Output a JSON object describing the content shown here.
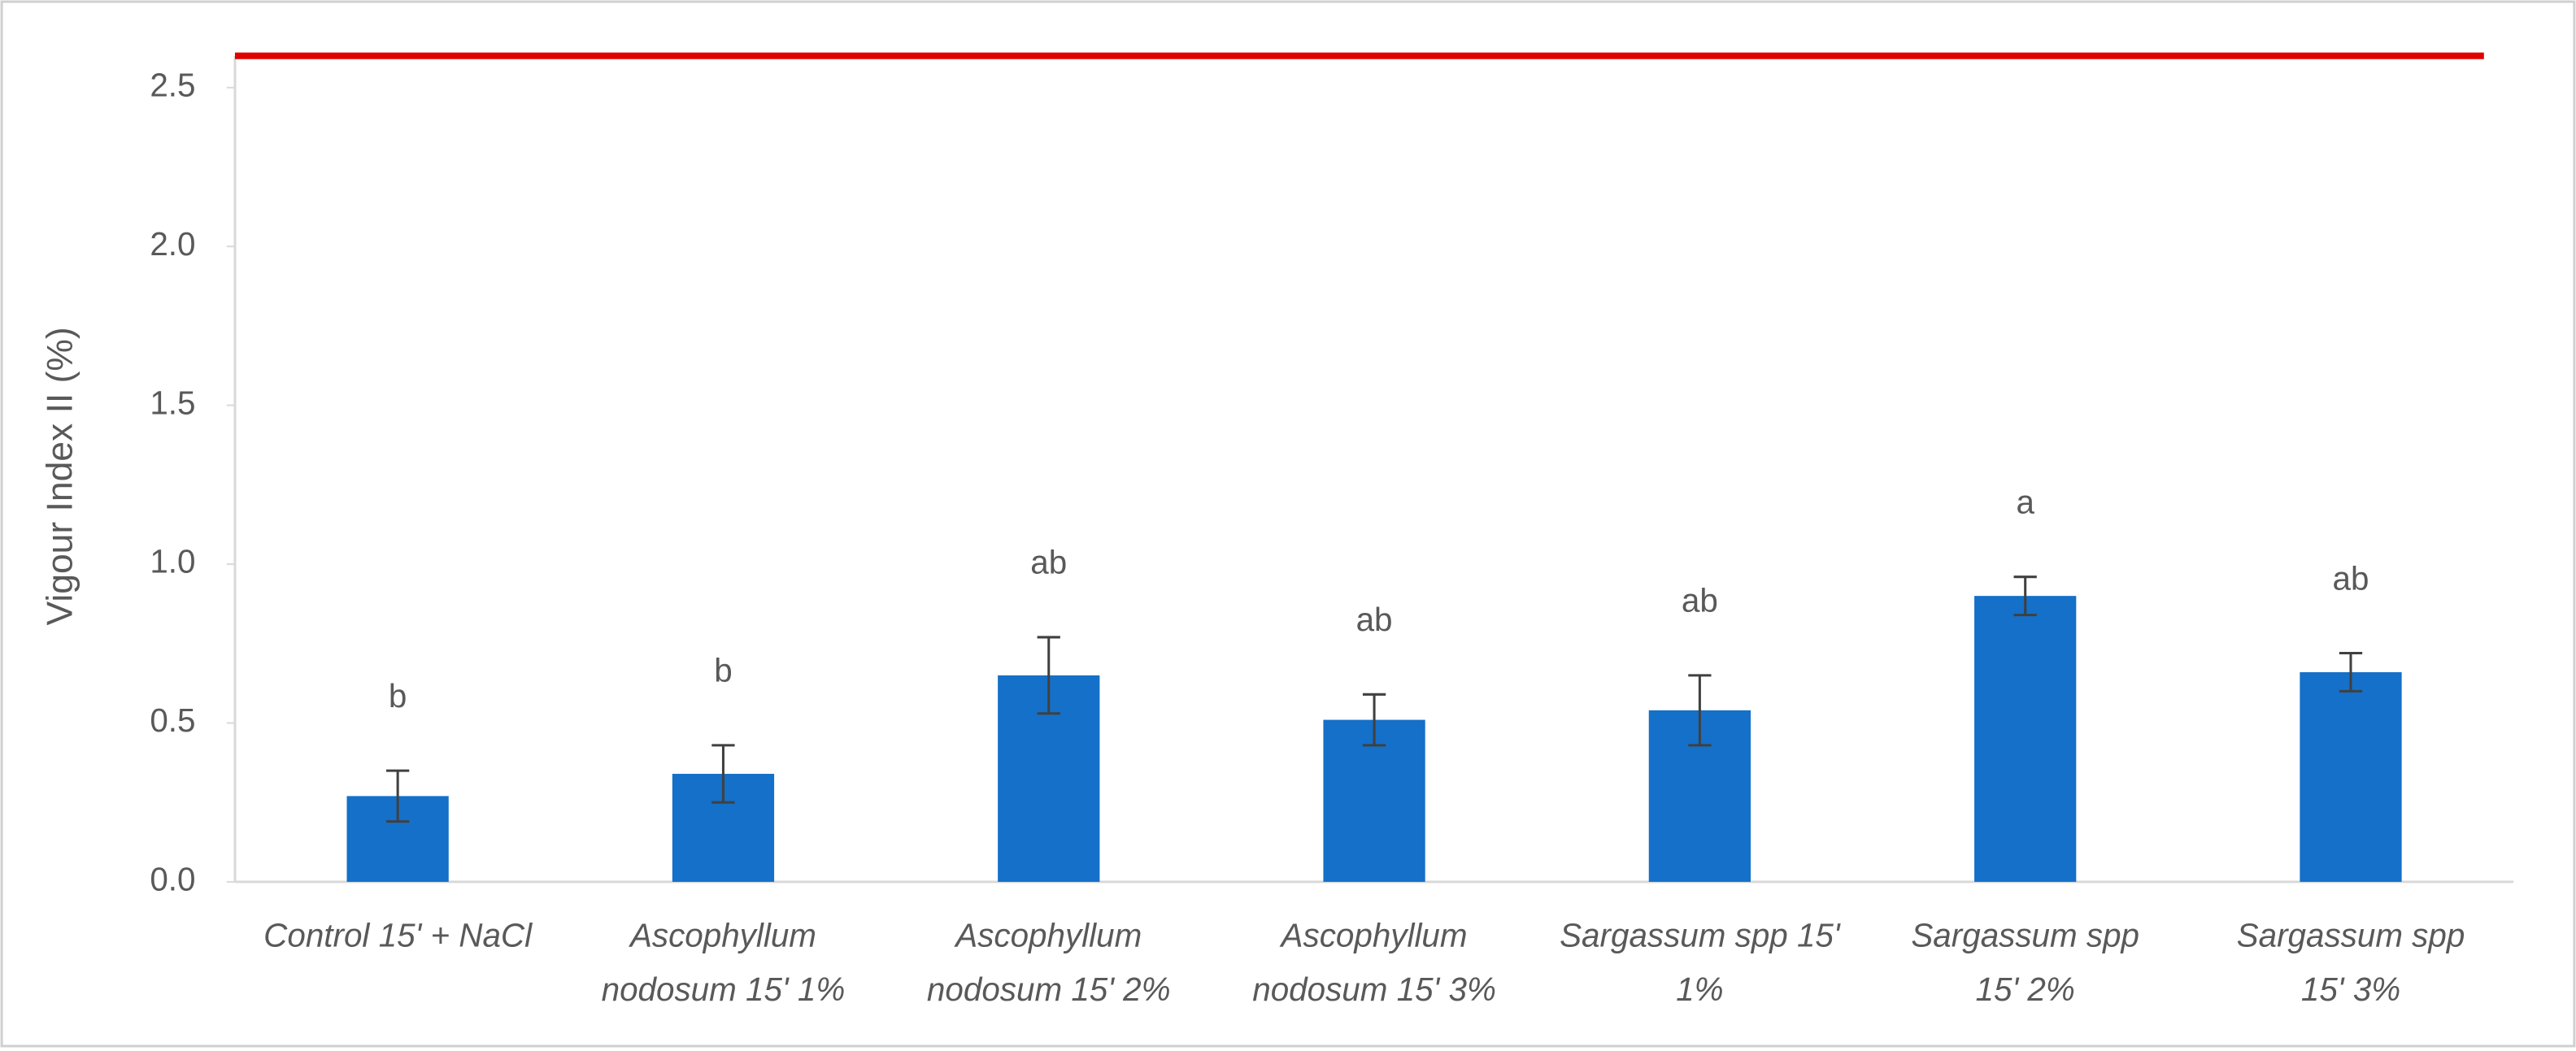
{
  "chart_data": {
    "type": "bar",
    "y_label": "Vigour Index II (%)",
    "categories": [
      [
        "Control 15' + NaCl"
      ],
      [
        "Ascophyllum",
        "nodosum 15' 1%"
      ],
      [
        "Ascophyllum",
        "nodosum 15' 2%"
      ],
      [
        "Ascophyllum",
        "nodosum 15' 3%"
      ],
      [
        "Sargassum spp 15'",
        "1%"
      ],
      [
        "Sargassum spp",
        "15' 2%"
      ],
      [
        "Sargassum spp",
        "15' 3%"
      ]
    ],
    "values": [
      0.27,
      0.34,
      0.65,
      0.51,
      0.54,
      0.9,
      0.66
    ],
    "errors": [
      0.08,
      0.09,
      0.12,
      0.08,
      0.11,
      0.06,
      0.06
    ],
    "annotations": [
      "b",
      "b",
      "ab",
      "ab",
      "ab",
      "a",
      "ab"
    ],
    "color": "#1470c8",
    "reference_line": 2.6,
    "reference_color": "#e00000",
    "ylim": [
      0,
      2.6
    ],
    "yticks": [
      {
        "value": 0,
        "label": "0.0"
      },
      {
        "value": 0.5,
        "label": "0.5"
      },
      {
        "value": 1,
        "label": "1.0"
      },
      {
        "value": 1.5,
        "label": "1.5"
      },
      {
        "value": 2,
        "label": "2.0"
      },
      {
        "value": 2.5,
        "label": "2.5"
      }
    ]
  }
}
